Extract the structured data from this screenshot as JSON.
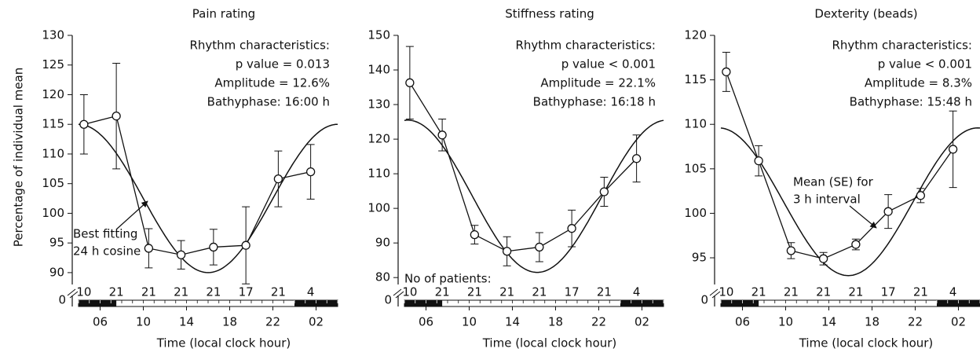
{
  "chart_data": [
    {
      "type": "line",
      "title": "Pain rating",
      "ylabel": "Percentage of individual mean",
      "xlabel": "Time (local clock hour)",
      "xlim": [
        4,
        28
      ],
      "xticks": [
        {
          "value": 6,
          "label": "06"
        },
        10,
        14,
        18,
        22,
        {
          "value": 26,
          "label": "02"
        }
      ],
      "ylim": [
        88,
        130
      ],
      "yticks": [
        90,
        95,
        100,
        105,
        110,
        115,
        120,
        125,
        130
      ],
      "y_break_label": "0",
      "x": [
        4.5,
        7.5,
        10.5,
        13.5,
        16.5,
        19.5,
        22.5,
        25.5
      ],
      "values": [
        115,
        116.4,
        94.1,
        93,
        94.3,
        94.6,
        105.8,
        107
      ],
      "errors": [
        5,
        8.9,
        3.3,
        2.4,
        3,
        6.5,
        4.7,
        4.6
      ],
      "counts": [
        10,
        21,
        21,
        21,
        21,
        17,
        21,
        4
      ],
      "fit": {
        "mesor": 102.5,
        "amplitude": 12.5,
        "bathyphase": 16
      },
      "rhythm": [
        "Rhythm characteristics:",
        "p value = 0.013",
        "Amplitude = 12.6%",
        "Bathyphase: 16:00 h"
      ],
      "annotation": [
        "Best fitting",
        "24 h cosine"
      ]
    },
    {
      "type": "line",
      "title": "Stiffness rating",
      "xlabel": "Time (local clock hour)",
      "xlim": [
        4,
        28
      ],
      "xticks": [
        {
          "value": 6,
          "label": "06"
        },
        10,
        14,
        18,
        22,
        {
          "value": 26,
          "label": "02"
        }
      ],
      "ylim": [
        78,
        150
      ],
      "yticks": [
        80,
        90,
        100,
        110,
        120,
        130,
        140,
        150
      ],
      "y_break_label": "0",
      "x": [
        4.5,
        7.5,
        10.5,
        13.5,
        16.5,
        19.5,
        22.5,
        25.5
      ],
      "values": [
        136.3,
        121.2,
        92.4,
        87.6,
        88.8,
        94.2,
        104.8,
        114.4
      ],
      "errors": [
        10.5,
        4.6,
        2.7,
        4.2,
        4.2,
        5.3,
        4.2,
        6.8
      ],
      "counts": [
        10,
        21,
        21,
        21,
        21,
        17,
        21,
        4
      ],
      "counts_label": "No of patients:",
      "fit": {
        "mesor": 103.5,
        "amplitude": 22,
        "bathyphase": 16.3
      },
      "rhythm": [
        "Rhythm characteristics:",
        "p value < 0.001",
        "Amplitude = 22.1%",
        "Bathyphase: 16:18 h"
      ]
    },
    {
      "type": "line",
      "title": "Dexterity (beads)",
      "xlabel": "Time (local clock hour)",
      "xlim": [
        4,
        28
      ],
      "xticks": [
        {
          "value": 6,
          "label": "06"
        },
        10,
        14,
        18,
        22,
        {
          "value": 26,
          "label": "02"
        }
      ],
      "ylim": [
        92,
        120
      ],
      "yticks": [
        95,
        100,
        105,
        110,
        115,
        120
      ],
      "y_break_label": "0",
      "x": [
        4.5,
        7.5,
        10.5,
        13.5,
        16.5,
        19.5,
        22.5,
        25.5
      ],
      "values": [
        115.9,
        105.9,
        95.8,
        94.9,
        96.5,
        100.2,
        102,
        107.2
      ],
      "errors": [
        2.2,
        1.7,
        0.9,
        0.7,
        0.6,
        1.9,
        0.8,
        4.3
      ],
      "counts": [
        10,
        21,
        21,
        21,
        21,
        17,
        21,
        4
      ],
      "fit": {
        "mesor": 101.3,
        "amplitude": 8.3,
        "bathyphase": 15.8
      },
      "rhythm": [
        "Rhythm characteristics:",
        "p value < 0.001",
        "Amplitude = 8.3%",
        "Bathyphase: 15:48 h"
      ],
      "annotation": [
        "Mean (SE) for",
        "3 h interval"
      ]
    }
  ]
}
